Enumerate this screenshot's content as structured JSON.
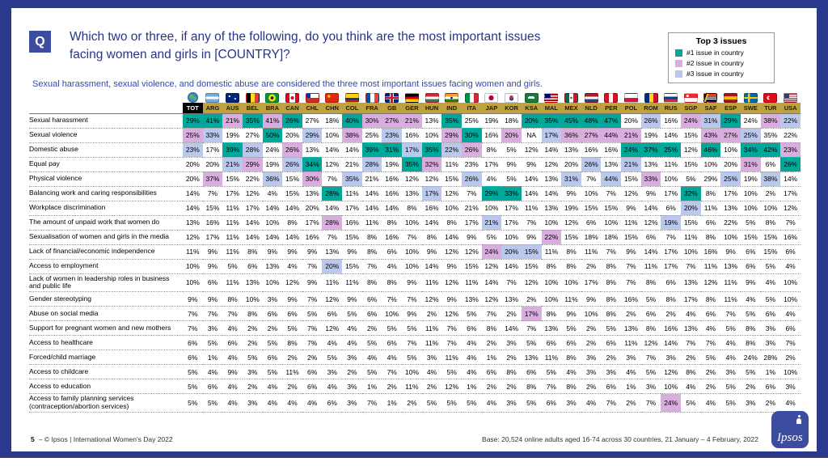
{
  "header": {
    "q_label": "Q",
    "title_line1": "Which two or three, if any of the following, do you think are the most important issues",
    "title_line2": "facing women and girls in [COUNTRY]?",
    "subtitle": "Sexual harassment, sexual violence, and domestic abuse are considered the three most important issues facing women and girls."
  },
  "legend": {
    "title": "Top 3 issues",
    "items": [
      {
        "rank": 1,
        "label": "#1 issue in country",
        "color": "#00a79b"
      },
      {
        "rank": 2,
        "label": "#2 issue in country",
        "color": "#d9aede"
      },
      {
        "rank": 3,
        "label": "#3 issue in country",
        "color": "#b9c8ec"
      }
    ]
  },
  "colors": {
    "page_background": "#2b3a8c",
    "accent_blue": "#3c4da0",
    "column_header_gold": "#bfa13e",
    "total_header_black": "#000000"
  },
  "chart_data": {
    "type": "table",
    "title": "Which two or three, if any of the following, do you think are the most important issues facing women and girls in [COUNTRY]?",
    "value_unit": "%",
    "na_label": "NA",
    "highlight_rule": "top 3 values in each country column are shaded: rank1 teal, rank2 plum, rank3 light blue",
    "columns": [
      {
        "code": "TOT",
        "flag_icon": "globe-icon"
      },
      {
        "code": "ARG",
        "flag_icon": "argentina-flag-icon"
      },
      {
        "code": "AUS",
        "flag_icon": "australia-flag-icon"
      },
      {
        "code": "BEL",
        "flag_icon": "belgium-flag-icon"
      },
      {
        "code": "BRA",
        "flag_icon": "brazil-flag-icon"
      },
      {
        "code": "CAN",
        "flag_icon": "canada-flag-icon"
      },
      {
        "code": "CHL",
        "flag_icon": "chile-flag-icon"
      },
      {
        "code": "CHN",
        "flag_icon": "china-flag-icon"
      },
      {
        "code": "COL",
        "flag_icon": "colombia-flag-icon"
      },
      {
        "code": "FRA",
        "flag_icon": "france-flag-icon"
      },
      {
        "code": "GB",
        "flag_icon": "uk-flag-icon"
      },
      {
        "code": "GER",
        "flag_icon": "germany-flag-icon"
      },
      {
        "code": "HUN",
        "flag_icon": "hungary-flag-icon"
      },
      {
        "code": "IND",
        "flag_icon": "india-flag-icon"
      },
      {
        "code": "ITA",
        "flag_icon": "italy-flag-icon"
      },
      {
        "code": "JAP",
        "flag_icon": "japan-flag-icon"
      },
      {
        "code": "KOR",
        "flag_icon": "south-korea-flag-icon"
      },
      {
        "code": "KSA",
        "flag_icon": "saudi-arabia-flag-icon"
      },
      {
        "code": "MAL",
        "flag_icon": "malaysia-flag-icon"
      },
      {
        "code": "MEX",
        "flag_icon": "mexico-flag-icon"
      },
      {
        "code": "NLD",
        "flag_icon": "netherlands-flag-icon"
      },
      {
        "code": "PER",
        "flag_icon": "peru-flag-icon"
      },
      {
        "code": "POL",
        "flag_icon": "poland-flag-icon"
      },
      {
        "code": "ROM",
        "flag_icon": "romania-flag-icon"
      },
      {
        "code": "RUS",
        "flag_icon": "russia-flag-icon"
      },
      {
        "code": "SGP",
        "flag_icon": "singapore-flag-icon"
      },
      {
        "code": "SAF",
        "flag_icon": "south-africa-flag-icon"
      },
      {
        "code": "ESP",
        "flag_icon": "spain-flag-icon"
      },
      {
        "code": "SWE",
        "flag_icon": "sweden-flag-icon"
      },
      {
        "code": "TUR",
        "flag_icon": "turkey-flag-icon"
      },
      {
        "code": "USA",
        "flag_icon": "usa-flag-icon"
      }
    ],
    "rows": [
      {
        "label": "Sexual harassment",
        "values": [
          29,
          41,
          21,
          35,
          41,
          26,
          27,
          18,
          40,
          30,
          27,
          21,
          13,
          35,
          25,
          19,
          18,
          20,
          35,
          45,
          48,
          47,
          20,
          26,
          16,
          24,
          31,
          29,
          24,
          38,
          22
        ]
      },
      {
        "label": "Sexual violence",
        "values": [
          25,
          33,
          19,
          27,
          50,
          20,
          29,
          10,
          38,
          25,
          23,
          16,
          10,
          29,
          30,
          16,
          20,
          "NA",
          17,
          36,
          27,
          44,
          21,
          19,
          14,
          15,
          43,
          27,
          25,
          35,
          22
        ]
      },
      {
        "label": "Domestic abuse",
        "values": [
          23,
          17,
          39,
          28,
          24,
          26,
          13,
          14,
          14,
          39,
          31,
          17,
          35,
          22,
          26,
          8,
          5,
          12,
          14,
          13,
          16,
          16,
          24,
          37,
          25,
          12,
          46,
          10,
          34,
          42,
          23
        ]
      },
      {
        "label": "Equal pay",
        "values": [
          20,
          20,
          21,
          29,
          19,
          26,
          34,
          12,
          21,
          28,
          19,
          35,
          32,
          11,
          23,
          17,
          9,
          9,
          12,
          20,
          26,
          13,
          21,
          13,
          11,
          15,
          10,
          20,
          31,
          6,
          26
        ]
      },
      {
        "label": "Physical violence",
        "values": [
          20,
          37,
          15,
          22,
          36,
          15,
          30,
          7,
          35,
          21,
          16,
          12,
          12,
          15,
          26,
          4,
          5,
          14,
          13,
          31,
          7,
          44,
          15,
          33,
          10,
          5,
          29,
          25,
          19,
          38,
          14
        ]
      },
      {
        "label": "Balancing work and caring responsibilities",
        "values": [
          14,
          7,
          17,
          12,
          4,
          15,
          13,
          28,
          11,
          14,
          16,
          13,
          17,
          12,
          7,
          29,
          33,
          14,
          14,
          9,
          10,
          7,
          12,
          9,
          17,
          32,
          8,
          17,
          10,
          2,
          17
        ]
      },
      {
        "label": "Workplace discrimination",
        "values": [
          14,
          15,
          11,
          17,
          14,
          14,
          20,
          14,
          17,
          14,
          14,
          8,
          16,
          10,
          21,
          10,
          17,
          11,
          13,
          19,
          15,
          15,
          9,
          14,
          6,
          20,
          11,
          13,
          10,
          10,
          12
        ]
      },
      {
        "label": "The amount of unpaid work that women do",
        "values": [
          13,
          16,
          11,
          14,
          10,
          8,
          17,
          28,
          16,
          11,
          8,
          10,
          14,
          8,
          17,
          21,
          17,
          7,
          10,
          12,
          6,
          10,
          11,
          12,
          19,
          15,
          6,
          22,
          5,
          8,
          7
        ]
      },
      {
        "label": "Sexualisation of women and girls in the media",
        "values": [
          12,
          17,
          11,
          14,
          14,
          14,
          16,
          7,
          15,
          8,
          16,
          7,
          8,
          14,
          9,
          5,
          10,
          9,
          22,
          15,
          18,
          18,
          15,
          6,
          7,
          11,
          8,
          10,
          15,
          15,
          16
        ]
      },
      {
        "label": "Lack of financial/economic independence",
        "values": [
          11,
          9,
          11,
          8,
          9,
          9,
          9,
          13,
          9,
          8,
          6,
          10,
          9,
          12,
          12,
          24,
          20,
          15,
          11,
          8,
          11,
          7,
          9,
          14,
          17,
          10,
          16,
          9,
          6,
          15,
          6
        ]
      },
      {
        "label": "Access to employment",
        "values": [
          10,
          9,
          5,
          6,
          13,
          4,
          7,
          20,
          15,
          7,
          4,
          10,
          14,
          9,
          15,
          12,
          14,
          15,
          8,
          8,
          2,
          8,
          7,
          11,
          17,
          7,
          11,
          13,
          6,
          5,
          4
        ]
      },
      {
        "label": "Lack of women in leadership roles in business and public life",
        "values": [
          10,
          6,
          11,
          13,
          10,
          12,
          9,
          11,
          11,
          8,
          8,
          9,
          11,
          12,
          11,
          14,
          7,
          12,
          10,
          10,
          17,
          8,
          7,
          8,
          6,
          13,
          12,
          11,
          9,
          4,
          10
        ]
      },
      {
        "label": "Gender stereotyping",
        "values": [
          9,
          9,
          8,
          10,
          3,
          9,
          7,
          12,
          9,
          6,
          7,
          7,
          12,
          9,
          13,
          12,
          13,
          2,
          10,
          11,
          9,
          8,
          16,
          5,
          8,
          17,
          8,
          11,
          4,
          5,
          10
        ]
      },
      {
        "label": "Abuse on social media",
        "values": [
          7,
          7,
          7,
          8,
          6,
          6,
          5,
          6,
          5,
          6,
          10,
          9,
          2,
          12,
          5,
          7,
          2,
          17,
          8,
          9,
          10,
          8,
          2,
          6,
          2,
          4,
          6,
          7,
          5,
          6,
          4
        ]
      },
      {
        "label": "Support for pregnant women and new mothers",
        "values": [
          7,
          3,
          4,
          2,
          2,
          5,
          7,
          12,
          4,
          2,
          5,
          5,
          11,
          7,
          6,
          8,
          14,
          7,
          13,
          5,
          2,
          5,
          13,
          8,
          16,
          13,
          4,
          5,
          8,
          3,
          6
        ]
      },
      {
        "label": "Access to healthcare",
        "values": [
          6,
          5,
          6,
          2,
          5,
          8,
          7,
          4,
          4,
          5,
          6,
          7,
          11,
          7,
          4,
          2,
          3,
          5,
          6,
          6,
          2,
          6,
          11,
          12,
          14,
          7,
          7,
          4,
          8,
          3,
          7
        ]
      },
      {
        "label": "Forced/child marriage",
        "values": [
          6,
          1,
          4,
          5,
          6,
          2,
          2,
          5,
          3,
          4,
          4,
          5,
          3,
          11,
          4,
          1,
          2,
          13,
          11,
          8,
          3,
          2,
          3,
          7,
          3,
          2,
          5,
          4,
          24,
          28,
          2
        ]
      },
      {
        "label": "Access to childcare",
        "values": [
          5,
          4,
          9,
          3,
          5,
          11,
          6,
          3,
          2,
          5,
          7,
          10,
          4,
          5,
          4,
          6,
          8,
          6,
          5,
          4,
          3,
          3,
          4,
          5,
          12,
          8,
          2,
          3,
          5,
          1,
          10
        ]
      },
      {
        "label": "Access to education",
        "values": [
          5,
          6,
          4,
          2,
          4,
          2,
          6,
          4,
          3,
          1,
          2,
          11,
          2,
          12,
          1,
          2,
          2,
          8,
          7,
          8,
          2,
          6,
          1,
          3,
          10,
          4,
          2,
          5,
          2,
          6,
          3
        ]
      },
      {
        "label": "Access to family planning services (contraception/abortion services)",
        "values": [
          5,
          5,
          4,
          3,
          4,
          4,
          4,
          6,
          3,
          7,
          1,
          2,
          5,
          5,
          5,
          4,
          3,
          5,
          6,
          3,
          4,
          7,
          2,
          7,
          24,
          5,
          4,
          5,
          3,
          2,
          4
        ]
      }
    ]
  },
  "footer": {
    "page_label": "5",
    "separator": "–",
    "copyright": "© Ipsos | International Women's Day 2022",
    "base_note": "Base: 20,524 online adults aged 16-74 across 30 countries, 21 January – 4 February, 2022",
    "logo_text": "Ipsos"
  }
}
